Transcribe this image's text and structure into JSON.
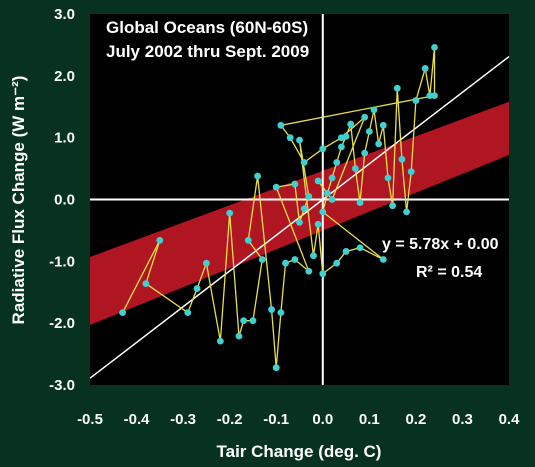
{
  "chart_data": {
    "type": "scatter",
    "title": "Global Oceans (60N-60S)",
    "subtitle": "July 2002 thru Sept. 2009",
    "xlabel": "Tair Change (deg. C)",
    "ylabel": "Radiative Flux Change (W m⁻²)",
    "xlim": [
      -0.5,
      0.4
    ],
    "ylim": [
      -3.0,
      3.0
    ],
    "xticks": [
      "-0.5",
      "-0.4",
      "-0.3",
      "-0.2",
      "-0.1",
      "0.0",
      "0.1",
      "0.2",
      "0.3",
      "0.4"
    ],
    "yticks": [
      "3.0",
      "2.0",
      "1.0",
      "0.0",
      "-1.0",
      "-2.0",
      "-3.0"
    ],
    "grid": false,
    "regression": {
      "slope": 5.78,
      "intercept": 0.0,
      "equation": "y = 5.78x + 0.00",
      "r2_label": "R² = 0.54"
    },
    "band": {
      "upper": [
        [
          -0.5,
          -0.93
        ],
        [
          0.4,
          1.58
        ]
      ],
      "lower": [
        [
          -0.5,
          -2.03
        ],
        [
          0.4,
          0.72
        ]
      ]
    },
    "colors": {
      "background": "#06321f",
      "plot_bg": "#000000",
      "points": "#3fd0d0",
      "line": "#e8e048",
      "band": "#b01622",
      "regression": "#ffffff",
      "text": "#ffffff"
    },
    "points": [
      [
        -0.43,
        -1.83
      ],
      [
        -0.35,
        -0.66
      ],
      [
        -0.38,
        -1.36
      ],
      [
        -0.29,
        -1.83
      ],
      [
        -0.27,
        -1.44
      ],
      [
        -0.25,
        -1.03
      ],
      [
        -0.22,
        -2.29
      ],
      [
        -0.2,
        -0.22
      ],
      [
        -0.18,
        -2.21
      ],
      [
        -0.17,
        -1.96
      ],
      [
        -0.15,
        -1.96
      ],
      [
        -0.13,
        -0.97
      ],
      [
        -0.16,
        -0.66
      ],
      [
        -0.14,
        0.38
      ],
      [
        -0.11,
        -1.78
      ],
      [
        -0.1,
        -2.72
      ],
      [
        -0.09,
        -1.83
      ],
      [
        -0.08,
        -1.03
      ],
      [
        -0.06,
        -0.97
      ],
      [
        -0.03,
        -1.16
      ],
      [
        -0.1,
        0.2
      ],
      [
        -0.06,
        0.25
      ],
      [
        -0.05,
        -0.37
      ],
      [
        -0.04,
        -0.15
      ],
      [
        -0.03,
        0.05
      ],
      [
        -0.05,
        0.96
      ],
      [
        -0.02,
        -0.91
      ],
      [
        -0.01,
        -0.4
      ],
      [
        0.0,
        -1.2
      ],
      [
        0.03,
        -1.03
      ],
      [
        0.05,
        -0.84
      ],
      [
        0.08,
        -0.78
      ],
      [
        0.13,
        -0.97
      ],
      [
        0.0,
        -0.2
      ],
      [
        0.01,
        0.1
      ],
      [
        0.02,
        0.35
      ],
      [
        0.03,
        0.6
      ],
      [
        0.04,
        0.85
      ],
      [
        0.05,
        1.02
      ],
      [
        0.06,
        1.22
      ],
      [
        0.07,
        0.5
      ],
      [
        0.08,
        -0.05
      ],
      [
        0.09,
        0.75
      ],
      [
        0.1,
        1.1
      ],
      [
        0.11,
        1.45
      ],
      [
        0.12,
        0.9
      ],
      [
        0.13,
        1.2
      ],
      [
        0.14,
        0.35
      ],
      [
        0.15,
        -0.1
      ],
      [
        0.16,
        1.8
      ],
      [
        0.17,
        0.65
      ],
      [
        0.18,
        -0.2
      ],
      [
        0.19,
        0.45
      ],
      [
        0.2,
        1.6
      ],
      [
        0.22,
        2.12
      ],
      [
        0.23,
        1.68
      ],
      [
        0.24,
        2.46
      ],
      [
        0.24,
        1.68
      ],
      [
        -0.09,
        1.2
      ],
      [
        -0.07,
        1.0
      ],
      [
        -0.04,
        0.6
      ],
      [
        0.0,
        0.82
      ],
      [
        0.04,
        1.0
      ],
      [
        0.09,
        1.33
      ],
      [
        0.02,
        0.0
      ],
      [
        -0.01,
        0.3
      ]
    ]
  }
}
